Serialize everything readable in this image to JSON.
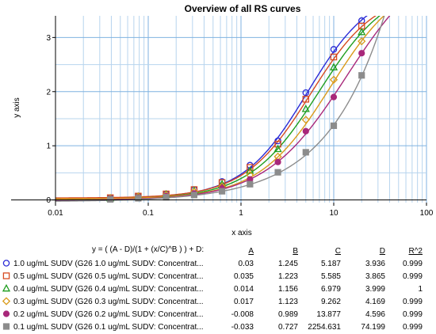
{
  "chart_data": {
    "type": "scatter",
    "title": "Overview of all RS curves",
    "xlabel": "x axis",
    "ylabel": "y axis",
    "x_scale": "log",
    "xlim": [
      0.01,
      100
    ],
    "ylim": [
      -0.05,
      3.4
    ],
    "x_ticks": [
      "0.01",
      "0.1",
      "1",
      "10",
      "100"
    ],
    "y_ticks": [
      "0",
      "1",
      "2",
      "3"
    ],
    "grid": true,
    "legend_position": "bottom",
    "equation": "y = ( (A - D)/(1 + (x/C)^B ) ) + D:",
    "param_headers": [
      "A",
      "B",
      "C",
      "D",
      "R^2"
    ],
    "x": [
      0.039,
      0.078,
      0.156,
      0.3125,
      0.625,
      1.25,
      2.5,
      5,
      10,
      20
    ],
    "series": [
      {
        "name": "1.0 ug/mL SUDV (G26 1.0 ug/mL SUDV: Concentrat...",
        "marker": "circle-open",
        "color": "#2a2ad6",
        "params": {
          "A": "0.03",
          "B": "1.245",
          "C": "5.187",
          "D": "3.936",
          "R2": "0.999"
        },
        "values": [
          0.04,
          0.07,
          0.11,
          0.19,
          0.34,
          0.64,
          1.09,
          1.98,
          2.78,
          3.31
        ]
      },
      {
        "name": "0.5 ug/mL SUDV (G26 0.5 ug/mL SUDV: Concentrat...",
        "marker": "square-open",
        "color": "#d64a20",
        "params": {
          "A": "0.035",
          "B": "1.223",
          "C": "5.585",
          "D": "3.865",
          "R2": "0.999"
        },
        "values": [
          0.04,
          0.07,
          0.11,
          0.19,
          0.32,
          0.6,
          1.03,
          1.86,
          2.64,
          3.21
        ]
      },
      {
        "name": "0.4 ug/mL SUDV (G26 0.4 ug/mL SUDV: Concentrat...",
        "marker": "triangle-open",
        "color": "#1f9e1f",
        "params": {
          "A": "0.014",
          "B": "1.156",
          "C": "6.979",
          "D": "3.999",
          "R2": "1"
        },
        "values": [
          0.03,
          0.06,
          0.1,
          0.17,
          0.29,
          0.54,
          0.94,
          1.68,
          2.45,
          3.1
        ]
      },
      {
        "name": "0.3 ug/mL SUDV (G26 0.3 ug/mL SUDV: Concentrat...",
        "marker": "diamond-open",
        "color": "#d99a1a",
        "params": {
          "A": "0.017",
          "B": "1.123",
          "C": "9.262",
          "D": "4.169",
          "R2": "0.999"
        },
        "values": [
          0.03,
          0.06,
          0.09,
          0.15,
          0.25,
          0.46,
          0.8,
          1.48,
          2.22,
          2.93
        ]
      },
      {
        "name": "0.2 ug/mL SUDV (G26 0.2 ug/mL SUDV: Concentrat...",
        "marker": "circle-filled",
        "color": "#a8287a",
        "params": {
          "A": "-0.008",
          "B": "0.989",
          "C": "13.877",
          "D": "4.596",
          "R2": "0.999"
        },
        "values": [
          0.02,
          0.04,
          0.07,
          0.12,
          0.21,
          0.38,
          0.7,
          1.27,
          1.9,
          2.71
        ]
      },
      {
        "name": "0.1 ug/mL SUDV (G26 0.1 ug/mL SUDV: Concentrat...",
        "marker": "square-filled",
        "color": "#8c8c8c",
        "params": {
          "A": "-0.033",
          "B": "0.727",
          "C": "2254.631",
          "D": "74.199",
          "R2": "0.999"
        },
        "values": [
          0.01,
          0.03,
          0.05,
          0.09,
          0.16,
          0.29,
          0.51,
          0.88,
          1.37,
          2.3
        ]
      }
    ]
  }
}
